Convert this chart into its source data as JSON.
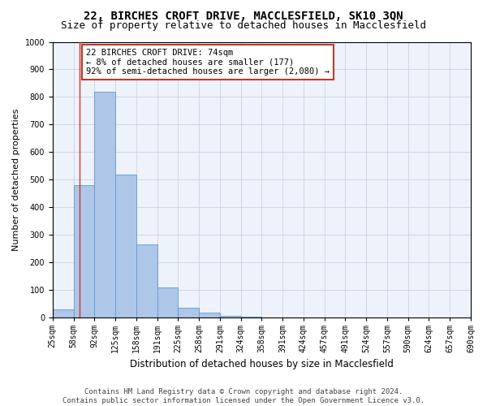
{
  "title": "22, BIRCHES CROFT DRIVE, MACCLESFIELD, SK10 3QN",
  "subtitle": "Size of property relative to detached houses in Macclesfield",
  "xlabel": "Distribution of detached houses by size in Macclesfield",
  "ylabel": "Number of detached properties",
  "bar_values": [
    30,
    480,
    820,
    520,
    265,
    110,
    38,
    18,
    8,
    3,
    0,
    0,
    0,
    0,
    0,
    0,
    0,
    0,
    0,
    0
  ],
  "bin_labels": [
    "25sqm",
    "58sqm",
    "92sqm",
    "125sqm",
    "158sqm",
    "191sqm",
    "225sqm",
    "258sqm",
    "291sqm",
    "324sqm",
    "358sqm",
    "391sqm",
    "424sqm",
    "457sqm",
    "491sqm",
    "524sqm",
    "557sqm",
    "590sqm",
    "624sqm",
    "657sqm",
    "690sqm"
  ],
  "bar_color": "#aec6e8",
  "bar_edge_color": "#5b9bd5",
  "property_line_value": 1.3,
  "property_line_color": "#c0392b",
  "annotation_text": "22 BIRCHES CROFT DRIVE: 74sqm\n← 8% of detached houses are smaller (177)\n92% of semi-detached houses are larger (2,080) →",
  "annotation_box_facecolor": "#ffffff",
  "annotation_box_edgecolor": "#c0392b",
  "ylim": [
    0,
    1000
  ],
  "yticks": [
    0,
    100,
    200,
    300,
    400,
    500,
    600,
    700,
    800,
    900,
    1000
  ],
  "grid_color": "#c8d4e8",
  "background_color": "#eef2fa",
  "footnote": "Contains HM Land Registry data © Crown copyright and database right 2024.\nContains public sector information licensed under the Open Government Licence v3.0.",
  "title_fontsize": 10,
  "subtitle_fontsize": 9,
  "xlabel_fontsize": 8.5,
  "ylabel_fontsize": 8,
  "tick_fontsize": 7,
  "annotation_fontsize": 7.5,
  "footnote_fontsize": 6.5
}
